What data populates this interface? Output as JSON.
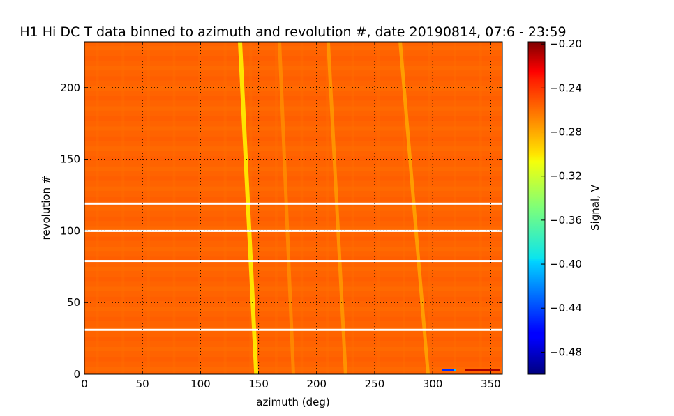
{
  "chart_data": {
    "type": "heatmap",
    "title": "H1 Hi DC T data binned to azimuth and revolution #, date 20190814, 07:6 - 23:59",
    "xlabel": "azimuth (deg)",
    "ylabel": "revolution #",
    "xlim": [
      0,
      360
    ],
    "ylim": [
      0,
      232
    ],
    "x_ticks": [
      0,
      50,
      100,
      150,
      200,
      250,
      300,
      350
    ],
    "y_ticks": [
      0,
      50,
      100,
      150,
      200
    ],
    "grid": true,
    "colorbar": {
      "label": "Signal, V",
      "range": [
        -0.5,
        -0.198
      ],
      "ticks": [
        -0.48,
        -0.44,
        -0.4,
        -0.36,
        -0.32,
        -0.28,
        -0.24,
        -0.2
      ],
      "tick_labels": [
        "−0.48",
        "−0.44",
        "−0.40",
        "−0.36",
        "−0.32",
        "−0.28",
        "−0.24",
        "−0.20"
      ],
      "colormap": "jet"
    },
    "background_signal": -0.265,
    "features": [
      {
        "name": "bright streak",
        "azimuth_start": 148,
        "azimuth_end": 134,
        "revolution_start": 0,
        "revolution_end": 232,
        "signal": -0.305
      },
      {
        "name": "faint streak",
        "azimuth_start": 296,
        "azimuth_end": 272,
        "revolution_start": 0,
        "revolution_end": 232,
        "signal": -0.29
      },
      {
        "name": "faint streak",
        "azimuth_start": 225,
        "azimuth_end": 210,
        "revolution_start": 0,
        "revolution_end": 232,
        "signal": -0.285
      },
      {
        "name": "faint streak",
        "azimuth_start": 180,
        "azimuth_end": 168,
        "revolution_start": 0,
        "revolution_end": 232,
        "signal": -0.28
      }
    ],
    "missing_revolutions": [
      31,
      79,
      100,
      119
    ],
    "anomaly": {
      "azimuth_start": 308,
      "azimuth_end": 360,
      "revolution": 3,
      "signal_min": -0.45,
      "signal_max": -0.21
    }
  }
}
